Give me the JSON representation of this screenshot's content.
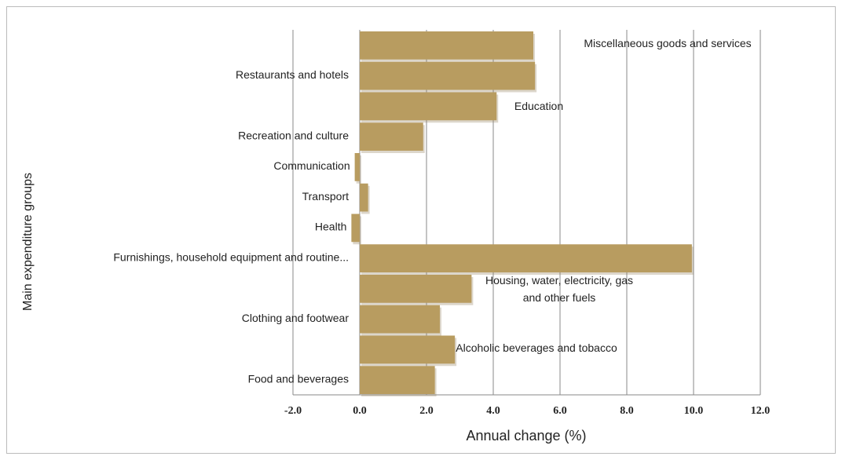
{
  "chart_data": {
    "type": "bar",
    "orientation": "horizontal",
    "x_label": "Annual change (%)",
    "y_label": "Main expenditure groups",
    "categories": [
      "Miscellaneous goods and services",
      "Restaurants and hotels",
      "Education",
      "Recreation and culture",
      "Communication",
      "Transport",
      "Health",
      "Furnishings, household equipment and routine...",
      "Housing, water, electricity, gas and other fuels",
      "Clothing and footwear",
      "Alcoholic beverages and tobacco",
      "Food and  beverages"
    ],
    "values": [
      5.2,
      5.25,
      4.1,
      1.9,
      -0.15,
      0.25,
      -0.25,
      9.95,
      3.35,
      2.4,
      2.85,
      2.25
    ],
    "color": "#b89c60",
    "xlim": [
      -2,
      12
    ],
    "xticks": [
      {
        "value": -2,
        "label": "-2.0"
      },
      {
        "value": 0,
        "label": "0.0"
      },
      {
        "value": 2,
        "label": "2.0"
      },
      {
        "value": 4,
        "label": "4.0"
      },
      {
        "value": 6,
        "label": "6.0"
      },
      {
        "value": 8,
        "label": "8.0"
      },
      {
        "value": 10,
        "label": "10.0"
      },
      {
        "value": 12,
        "label": "12.0"
      }
    ],
    "grid": true
  }
}
